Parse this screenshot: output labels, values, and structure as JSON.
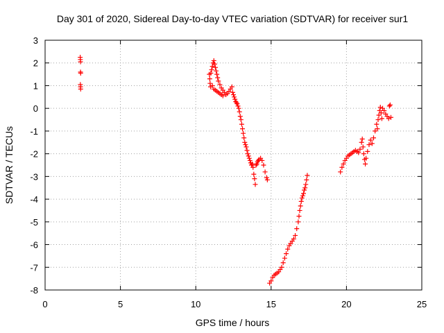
{
  "chart_data": {
    "type": "scatter",
    "title": "Day 301 of 2020, Sidereal Day-to-day VTEC variation (SDTVAR) for receiver sur1",
    "xlabel": "GPS time / hours",
    "ylabel": "SDTVAR / TECUs",
    "xlim": [
      0,
      25
    ],
    "ylim": [
      -8,
      3
    ],
    "xticks": [
      0,
      5,
      10,
      15,
      20,
      25
    ],
    "yticks": [
      -8,
      -7,
      -6,
      -5,
      -4,
      -3,
      -2,
      -1,
      0,
      1,
      2,
      3
    ],
    "grid": true,
    "marker": "+",
    "color": "#ff0000",
    "series": [
      {
        "name": "sur1",
        "points": [
          [
            2.33,
            2.25
          ],
          [
            2.34,
            2.15
          ],
          [
            2.35,
            2.05
          ],
          [
            2.35,
            1.6
          ],
          [
            2.36,
            1.55
          ],
          [
            2.34,
            1.05
          ],
          [
            2.35,
            0.95
          ],
          [
            2.36,
            0.85
          ],
          [
            10.9,
            1.5
          ],
          [
            10.93,
            1.3
          ],
          [
            10.95,
            1.1
          ],
          [
            10.98,
            0.95
          ],
          [
            11.0,
            1.55
          ],
          [
            11.05,
            1.7
          ],
          [
            11.1,
            1.85
          ],
          [
            11.15,
            2.0
          ],
          [
            11.2,
            2.1
          ],
          [
            11.25,
            1.95
          ],
          [
            11.3,
            1.8
          ],
          [
            11.35,
            1.65
          ],
          [
            11.4,
            1.5
          ],
          [
            11.45,
            1.35
          ],
          [
            11.5,
            1.2
          ],
          [
            11.1,
            1.0
          ],
          [
            11.2,
            0.85
          ],
          [
            11.3,
            0.8
          ],
          [
            11.4,
            0.75
          ],
          [
            11.5,
            0.7
          ],
          [
            11.6,
            0.65
          ],
          [
            11.7,
            0.6
          ],
          [
            11.8,
            0.55
          ],
          [
            11.6,
            1.05
          ],
          [
            11.7,
            0.9
          ],
          [
            11.8,
            0.8
          ],
          [
            11.9,
            0.7
          ],
          [
            12.0,
            0.6
          ],
          [
            12.1,
            0.65
          ],
          [
            12.2,
            0.75
          ],
          [
            12.3,
            0.85
          ],
          [
            12.4,
            0.95
          ],
          [
            12.45,
            0.7
          ],
          [
            12.5,
            0.6
          ],
          [
            12.55,
            0.5
          ],
          [
            12.6,
            0.4
          ],
          [
            12.65,
            0.3
          ],
          [
            12.7,
            0.25
          ],
          [
            12.75,
            0.2
          ],
          [
            12.8,
            0.1
          ],
          [
            12.85,
            0.0
          ],
          [
            12.9,
            -0.15
          ],
          [
            12.95,
            -0.35
          ],
          [
            13.0,
            -0.5
          ],
          [
            13.05,
            -0.7
          ],
          [
            13.1,
            -0.9
          ],
          [
            13.15,
            -1.1
          ],
          [
            13.2,
            -1.3
          ],
          [
            13.25,
            -1.5
          ],
          [
            13.3,
            -1.6
          ],
          [
            13.35,
            -1.7
          ],
          [
            13.4,
            -1.85
          ],
          [
            13.45,
            -2.0
          ],
          [
            13.5,
            -2.1
          ],
          [
            13.55,
            -2.2
          ],
          [
            13.6,
            -2.3
          ],
          [
            13.65,
            -2.4
          ],
          [
            13.7,
            -2.5
          ],
          [
            13.75,
            -2.45
          ],
          [
            13.8,
            -2.6
          ],
          [
            13.85,
            -2.9
          ],
          [
            13.9,
            -3.1
          ],
          [
            13.95,
            -3.35
          ],
          [
            14.0,
            -2.5
          ],
          [
            14.05,
            -2.45
          ],
          [
            14.1,
            -2.35
          ],
          [
            14.15,
            -2.3
          ],
          [
            14.2,
            -2.25
          ],
          [
            14.3,
            -2.2
          ],
          [
            14.4,
            -2.3
          ],
          [
            14.5,
            -2.5
          ],
          [
            14.6,
            -2.8
          ],
          [
            14.7,
            -3.05
          ],
          [
            14.75,
            -3.15
          ],
          [
            14.9,
            -7.7
          ],
          [
            15.0,
            -7.6
          ],
          [
            15.1,
            -7.45
          ],
          [
            15.2,
            -7.35
          ],
          [
            15.3,
            -7.3
          ],
          [
            15.4,
            -7.25
          ],
          [
            15.5,
            -7.2
          ],
          [
            15.6,
            -7.1
          ],
          [
            15.7,
            -7.0
          ],
          [
            15.8,
            -6.8
          ],
          [
            15.9,
            -6.6
          ],
          [
            16.0,
            -6.4
          ],
          [
            16.1,
            -6.2
          ],
          [
            16.2,
            -6.05
          ],
          [
            16.3,
            -5.95
          ],
          [
            16.4,
            -5.85
          ],
          [
            16.5,
            -5.75
          ],
          [
            16.6,
            -5.6
          ],
          [
            16.7,
            -5.3
          ],
          [
            16.8,
            -5.0
          ],
          [
            16.85,
            -4.75
          ],
          [
            16.9,
            -4.5
          ],
          [
            16.95,
            -4.3
          ],
          [
            17.0,
            -4.1
          ],
          [
            17.05,
            -3.95
          ],
          [
            17.1,
            -3.85
          ],
          [
            17.15,
            -3.75
          ],
          [
            17.2,
            -3.6
          ],
          [
            17.25,
            -3.5
          ],
          [
            17.3,
            -3.35
          ],
          [
            17.35,
            -3.15
          ],
          [
            17.4,
            -2.95
          ],
          [
            19.6,
            -2.8
          ],
          [
            19.7,
            -2.6
          ],
          [
            19.8,
            -2.45
          ],
          [
            19.9,
            -2.3
          ],
          [
            20.0,
            -2.2
          ],
          [
            20.1,
            -2.1
          ],
          [
            20.2,
            -2.05
          ],
          [
            20.3,
            -2.0
          ],
          [
            20.4,
            -1.95
          ],
          [
            20.5,
            -1.9
          ],
          [
            20.6,
            -1.85
          ],
          [
            20.7,
            -1.9
          ],
          [
            20.8,
            -1.95
          ],
          [
            20.9,
            -1.8
          ],
          [
            21.0,
            -1.5
          ],
          [
            21.05,
            -1.35
          ],
          [
            21.1,
            -1.7
          ],
          [
            21.15,
            -2.0
          ],
          [
            21.2,
            -2.25
          ],
          [
            21.25,
            -2.45
          ],
          [
            21.3,
            -2.2
          ],
          [
            21.4,
            -1.9
          ],
          [
            21.5,
            -1.6
          ],
          [
            21.6,
            -1.4
          ],
          [
            21.7,
            -1.55
          ],
          [
            21.8,
            -1.3
          ],
          [
            21.9,
            -1.0
          ],
          [
            22.0,
            -0.7
          ],
          [
            22.05,
            -0.9
          ],
          [
            22.1,
            -0.5
          ],
          [
            22.15,
            -0.3
          ],
          [
            22.2,
            -0.1
          ],
          [
            22.25,
            0.05
          ],
          [
            22.3,
            -0.2
          ],
          [
            22.35,
            -0.45
          ],
          [
            22.4,
            0.0
          ],
          [
            22.5,
            -0.1
          ],
          [
            22.6,
            -0.25
          ],
          [
            22.7,
            -0.35
          ],
          [
            22.8,
            -0.45
          ],
          [
            22.85,
            0.1
          ],
          [
            22.9,
            0.15
          ],
          [
            22.95,
            -0.4
          ]
        ]
      }
    ]
  }
}
